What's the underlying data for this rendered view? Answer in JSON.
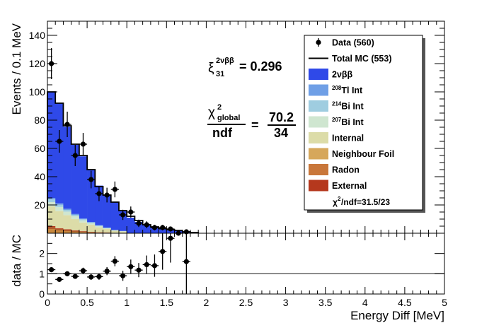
{
  "chart_data": [
    {
      "type": "stacked-histogram",
      "ylabel": "Events / 0.1 MeV",
      "ylim": [
        0,
        150
      ],
      "xlim": [
        0,
        5
      ],
      "bin_width": 0.1,
      "y_ticks": [
        "20",
        "40",
        "60",
        "80",
        "100",
        "120",
        "140"
      ],
      "stack": [
        {
          "name": "Neighbour Foil",
          "color": "#c8893f",
          "values": [
            3,
            2,
            1.5,
            1,
            0.8,
            0.5,
            0.3,
            0.2,
            0.1,
            0.1
          ]
        },
        {
          "name": "Radon",
          "color": "#b15a2b",
          "values": [
            1.5,
            1.2,
            1,
            0.8,
            0.6,
            0.4,
            0.3,
            0.2,
            0.1,
            0.1
          ]
        },
        {
          "name": "External",
          "color": "#b5381d",
          "values": [
            0.5,
            0.4,
            0.3,
            0.2,
            0.2,
            0.1,
            0.1,
            0.1,
            0,
            0
          ]
        },
        {
          "name": "Internal",
          "color": "#dcdca8",
          "values": [
            14,
            12,
            10,
            8,
            6,
            5,
            3.5,
            2.5,
            1.5,
            1
          ]
        },
        {
          "name": "207Bi Int",
          "color": "#cfe6d0",
          "values": [
            3,
            3,
            2.5,
            2,
            1.5,
            1,
            0.8,
            0.5,
            0.3,
            0.2
          ]
        },
        {
          "name": "214Bi Int",
          "color": "#9fcde0",
          "values": [
            2,
            1.5,
            1.2,
            1,
            0.8,
            0.6,
            0.4,
            0.3,
            0.2,
            0.1
          ]
        },
        {
          "name": "208Tl Int",
          "color": "#6f9fe6",
          "values": [
            1,
            1,
            0.8,
            0.6,
            0.5,
            0.4,
            0.3,
            0.2,
            0.1,
            0.1
          ]
        },
        {
          "name": "2νββ",
          "color": "#2f49e8",
          "values": [
            75,
            71,
            58,
            49,
            44,
            37,
            28,
            23,
            20,
            14,
            11,
            8,
            5.5,
            4,
            3,
            2.5,
            2,
            1,
            0.5
          ]
        }
      ],
      "total_mc": [
        100,
        92,
        76,
        63,
        55,
        45,
        33,
        27,
        22,
        16,
        12,
        9,
        6,
        4.5,
        3.2,
        2.6,
        2,
        1,
        0.5
      ],
      "data_points": {
        "x": [
          0.05,
          0.15,
          0.25,
          0.35,
          0.45,
          0.55,
          0.65,
          0.75,
          0.85,
          0.95,
          1.05,
          1.15,
          1.25,
          1.35,
          1.45,
          1.55,
          1.65,
          1.75
        ],
        "y": [
          120,
          65,
          77,
          55,
          63,
          38,
          28,
          27,
          31,
          13,
          15,
          7,
          6,
          4,
          4,
          3,
          0,
          1
        ],
        "err": [
          11,
          8,
          9,
          7.5,
          8,
          6.2,
          5.3,
          5.2,
          5.6,
          3.6,
          3.9,
          2.6,
          2.4,
          2,
          2,
          1.7,
          1,
          1
        ]
      },
      "legend": [
        {
          "key": "data",
          "label": "Data (560)"
        },
        {
          "key": "total",
          "label": "Total MC (553)"
        },
        {
          "key": "2nubb",
          "label": "2νββ"
        },
        {
          "key": "tl208",
          "sup": "208",
          "label": "Tl Int"
        },
        {
          "key": "bi214",
          "sup": "214",
          "label": "Bi Int"
        },
        {
          "key": "bi207",
          "sup": "207",
          "label": "Bi Int"
        },
        {
          "key": "internal",
          "label": "Internal"
        },
        {
          "key": "neighbour",
          "label": "Neighbour Foil"
        },
        {
          "key": "radon",
          "label": "Radon"
        },
        {
          "key": "external",
          "label": "External"
        }
      ],
      "legend_placement": "top-right",
      "chi2_ndf_label": "/ndf=31.5/23",
      "annotations": {
        "xi_symbol": "ξ",
        "xi_sup": "2νββ",
        "xi_sub": "31",
        "xi_value": "= 0.296",
        "chi_symbol": "χ",
        "chi_sup": "2",
        "chi_sub": "global",
        "ndf_label": "ndf",
        "equals": "=",
        "chi_num": "70.2",
        "chi_den": "34"
      }
    },
    {
      "type": "scatter",
      "xlabel": "Energy Diff [MeV]",
      "ylabel": "data / MC",
      "xlim": [
        0,
        5
      ],
      "ylim": [
        0,
        3
      ],
      "reference_line": 1,
      "x_ticks": [
        "0",
        "0.5",
        "1",
        "1.5",
        "2",
        "2.5",
        "3",
        "3.5",
        "4",
        "4.5",
        "5"
      ],
      "y_ticks": [
        "0",
        "1",
        "2"
      ],
      "points": {
        "x": [
          0.05,
          0.15,
          0.25,
          0.35,
          0.45,
          0.55,
          0.65,
          0.75,
          0.85,
          0.95,
          1.05,
          1.15,
          1.25,
          1.35,
          1.45,
          1.55,
          1.75
        ],
        "y": [
          1.2,
          0.72,
          1.0,
          0.87,
          1.15,
          0.84,
          0.86,
          1.13,
          1.62,
          0.9,
          1.35,
          1.18,
          1.45,
          1.4,
          2.1,
          2.75,
          1.6
        ],
        "err": [
          0.12,
          0.1,
          0.12,
          0.12,
          0.15,
          0.14,
          0.16,
          0.2,
          0.25,
          0.25,
          0.35,
          0.35,
          0.45,
          0.55,
          0.9,
          1.2,
          1.6
        ]
      }
    }
  ]
}
